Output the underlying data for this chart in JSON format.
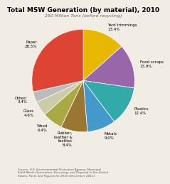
{
  "title": "Total MSW Generation (by material), 2010",
  "subtitle": "250 Million Tons (before recycling)",
  "source": "Source: U.S. Environmental Protection Agency, Municipal\nSolid Waste Generation, Recycling, and Disposal in the United\nStates: Facts and Figures for 2010 (December 2011).",
  "labels": [
    "Yard trimmings",
    "Food scraps",
    "Plastics",
    "Metals",
    "Rubber,\nleather &\ntextiles",
    "Wood",
    "Glass",
    "Other/",
    "Paper"
  ],
  "label_pcts": [
    "13.4%",
    "13.9%",
    "12.4%",
    "9.0%",
    "8.4%",
    "6.4%",
    "4.6%",
    "3.4%",
    "28.5%"
  ],
  "values": [
    13.4,
    13.9,
    12.4,
    9.0,
    8.4,
    6.4,
    4.6,
    3.4,
    28.5
  ],
  "colors": [
    "#e8b800",
    "#9966aa",
    "#33aaaa",
    "#4499cc",
    "#997733",
    "#aaaa44",
    "#ccccaa",
    "#bbbbbb",
    "#dd4433"
  ],
  "startangle": 90,
  "background_color": "#f2ede4"
}
